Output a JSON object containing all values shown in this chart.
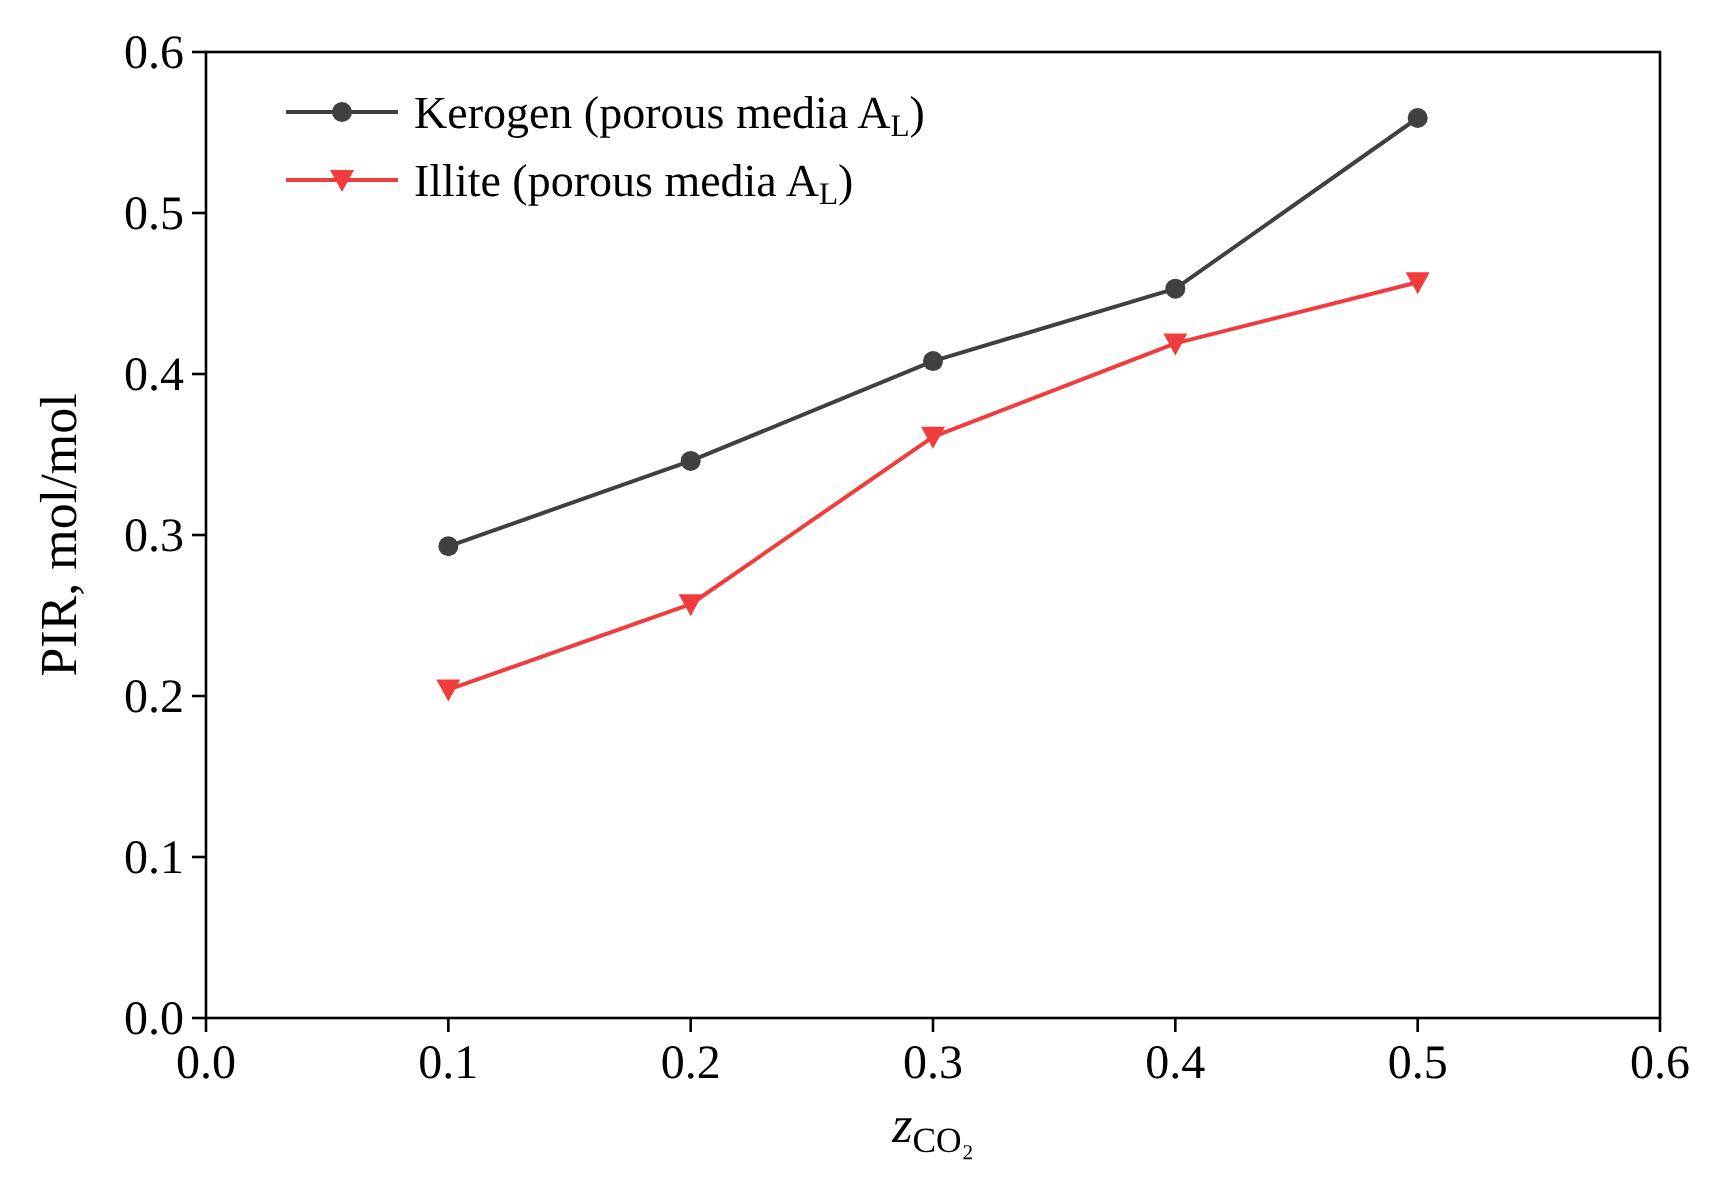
{
  "chart_data": {
    "type": "line",
    "xlabel": "z$_{CO₂}$",
    "ylabel": "PIR, mol/mol",
    "x": [
      0.1,
      0.2,
      0.3,
      0.4,
      0.5
    ],
    "series": [
      {
        "name": "Kerogen (porous media A$_{L}$)",
        "color": "#404040",
        "marker": "circle",
        "values": [
          0.293,
          0.346,
          0.408,
          0.453,
          0.559
        ]
      },
      {
        "name": "Illite (porous media A$_{L}$)",
        "color": "#f03c3c",
        "marker": "triangle",
        "values": [
          0.204,
          0.257,
          0.361,
          0.419,
          0.457
        ]
      }
    ],
    "xlim": [
      0,
      0.6
    ],
    "xticks": [
      {
        "value": 0,
        "label": "0.0"
      },
      0.1,
      0.2,
      0.3,
      0.4,
      0.5,
      0.6
    ],
    "ylim": [
      0,
      0.6
    ],
    "yticks": [
      {
        "value": 0,
        "label": "0.0"
      },
      0.1,
      0.2,
      0.3,
      0.4,
      0.5,
      0.6
    ],
    "grid": false,
    "legend": "top left",
    "line_style": "solid"
  }
}
